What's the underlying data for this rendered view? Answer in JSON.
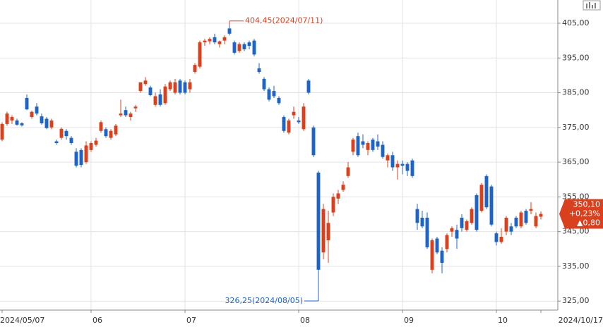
{
  "chart_data": {
    "type": "candlestick",
    "up_color": "#d9411e",
    "down_color": "#1f64c4",
    "grid": true,
    "ylim": [
      322.4,
      411.7
    ],
    "yticks": [
      {
        "value": 325,
        "label": "325,00"
      },
      {
        "value": 335,
        "label": "335,00"
      },
      {
        "value": 345,
        "label": "345,00"
      },
      {
        "value": 355,
        "label": "355,00"
      },
      {
        "value": 365,
        "label": "365,00"
      },
      {
        "value": 375,
        "label": "375,00"
      },
      {
        "value": 385,
        "label": "385,00"
      },
      {
        "value": 395,
        "label": "395,00"
      },
      {
        "value": 405,
        "label": "405,00"
      }
    ],
    "categories": [
      "2024/05/07",
      null,
      null,
      null,
      null,
      null,
      null,
      null,
      null,
      null,
      null,
      null,
      null,
      null,
      null,
      null,
      null,
      null,
      "06",
      null,
      null,
      null,
      null,
      null,
      null,
      null,
      null,
      null,
      null,
      null,
      null,
      null,
      null,
      null,
      null,
      null,
      null,
      "07",
      null,
      null,
      null,
      null,
      null,
      null,
      null,
      null,
      null,
      null,
      null,
      null,
      null,
      null,
      null,
      null,
      null,
      null,
      null,
      null,
      null,
      null,
      "08",
      null,
      null,
      null,
      null,
      null,
      null,
      null,
      null,
      null,
      null,
      null,
      null,
      null,
      null,
      null,
      null,
      null,
      null,
      null,
      null,
      "09",
      null,
      null,
      null,
      null,
      null,
      null,
      null,
      null,
      null,
      null,
      null,
      null,
      null,
      null,
      null,
      null,
      null,
      null,
      "10",
      null,
      null,
      null,
      null,
      null,
      null,
      null,
      null,
      "2024/10/17"
    ],
    "open": [
      371.5,
      376,
      377,
      377,
      376.2,
      383.5,
      378,
      381,
      378.2,
      377.5,
      375,
      371,
      372,
      374,
      372,
      368,
      368.5,
      365,
      368.5,
      370,
      374,
      374.5,
      372,
      373,
      378.5,
      380,
      378,
      380.5,
      385.5,
      387.5,
      386.5,
      381.5,
      384.5,
      382,
      386,
      385,
      388.5,
      388,
      386,
      391,
      392.5,
      399.5,
      399.8,
      401,
      399,
      400,
      403.5,
      399.5,
      397,
      399,
      399.5,
      400,
      392,
      389,
      386,
      385.5,
      383.5,
      378,
      373.5,
      378.5,
      377,
      374.5,
      388.5,
      375,
      362,
      339,
      342.5,
      350.5,
      354.5,
      357,
      361,
      368,
      372.5,
      371,
      368.5,
      371.5,
      371,
      370,
      365.5,
      367,
      363.5,
      364.5,
      364.5,
      365.5,
      351.5,
      349,
      349,
      334,
      343,
      339.5,
      340,
      345,
      345.5,
      349,
      345.5,
      347.5,
      355.5,
      351,
      361,
      358,
      344.5,
      342,
      345,
      346.5,
      349,
      346.5,
      351,
      351,
      346.5,
      349.3
    ],
    "high": [
      376.5,
      379.5,
      378.5,
      377.5,
      376.5,
      384.5,
      379.8,
      382,
      379,
      378,
      377.5,
      371.5,
      375,
      374.5,
      372.5,
      369,
      369,
      371,
      371,
      372,
      377,
      375,
      374.5,
      376,
      383,
      381,
      379.5,
      381.5,
      388,
      389.5,
      387,
      385,
      386,
      387.5,
      388.5,
      389,
      389,
      388.5,
      389,
      393.5,
      400,
      400.5,
      401,
      402,
      400,
      401.5,
      404.45,
      400,
      399.5,
      399.5,
      400,
      400.5,
      393.5,
      389.5,
      386.5,
      387,
      384,
      378.5,
      377.5,
      381,
      378,
      382,
      389,
      375.5,
      362.5,
      353,
      351,
      356,
      357,
      359.5,
      365,
      372,
      373.5,
      373,
      371,
      372,
      373,
      371,
      367.5,
      368,
      365.5,
      365.5,
      365,
      366,
      353,
      351,
      350.5,
      343,
      343.5,
      340.5,
      344.5,
      346.5,
      347,
      350,
      348.5,
      352,
      356,
      359,
      361.5,
      358.5,
      345,
      346,
      349.5,
      347.5,
      349.5,
      351,
      351.5,
      353.5,
      350.5,
      350.8
    ],
    "low": [
      371,
      375.5,
      376,
      375.5,
      375.3,
      380,
      377.5,
      378.5,
      375.8,
      374.5,
      374.5,
      370,
      371.5,
      371.5,
      370,
      363.5,
      363.5,
      364.5,
      368,
      369.5,
      373.5,
      372,
      371.5,
      372.5,
      378,
      378,
      377,
      379.5,
      385,
      387,
      384,
      381,
      381,
      381.5,
      385.5,
      384.5,
      384.5,
      384.5,
      385,
      390.5,
      392,
      398.5,
      399,
      399,
      398,
      399,
      401.5,
      396,
      396.5,
      397,
      397.5,
      395.5,
      390.5,
      385.5,
      382.5,
      383.5,
      381.5,
      373.5,
      373,
      377.5,
      376,
      374,
      384.5,
      366.5,
      326.25,
      337,
      336,
      349.5,
      353,
      356.5,
      360.5,
      367,
      366.5,
      369,
      367,
      368,
      368.5,
      366,
      363.5,
      362.5,
      360,
      361.5,
      361,
      360.5,
      345.5,
      346,
      340,
      333,
      338.5,
      333,
      339,
      343.5,
      340,
      345,
      345,
      347,
      345,
      350.5,
      351.5,
      346.5,
      341,
      341.5,
      344,
      344,
      346,
      346,
      347,
      350,
      346,
      348.5
    ],
    "close": [
      376,
      379,
      378,
      375.8,
      375.6,
      380.2,
      379.5,
      379,
      376.2,
      374.8,
      377,
      370.5,
      374.6,
      372.5,
      370.5,
      364,
      364.2,
      369.8,
      370.5,
      371.2,
      376.5,
      372.5,
      374,
      375.5,
      379,
      378.5,
      379,
      381,
      388,
      388.5,
      384.3,
      384,
      381.5,
      386.8,
      388,
      388,
      385,
      385,
      388,
      393,
      399.5,
      400,
      400.5,
      399.5,
      399.8,
      401,
      402,
      396.5,
      399,
      397.5,
      398.5,
      396,
      391,
      386,
      383,
      384,
      382,
      374,
      377,
      379.5,
      376.5,
      381,
      385,
      367,
      334,
      351.5,
      347.5,
      355,
      356,
      358.5,
      363.5,
      371.5,
      367,
      370,
      370.5,
      368.5,
      369.5,
      366.5,
      367,
      363.5,
      364.5,
      364,
      362.5,
      361,
      347.5,
      346.5,
      340.5,
      342.5,
      339,
      336,
      344,
      346,
      343,
      346,
      348,
      351.5,
      345.5,
      358.5,
      352,
      347,
      342,
      343.5,
      349,
      345,
      346.5,
      350.5,
      347.5,
      351.5,
      349.5,
      350.1
    ],
    "max_annotation": "404,45(2024/07/11)",
    "min_annotation": "326,25(2024/08/05)",
    "last_price": "350,10",
    "change_percent": "+0,23%",
    "change": "▲0,80"
  }
}
